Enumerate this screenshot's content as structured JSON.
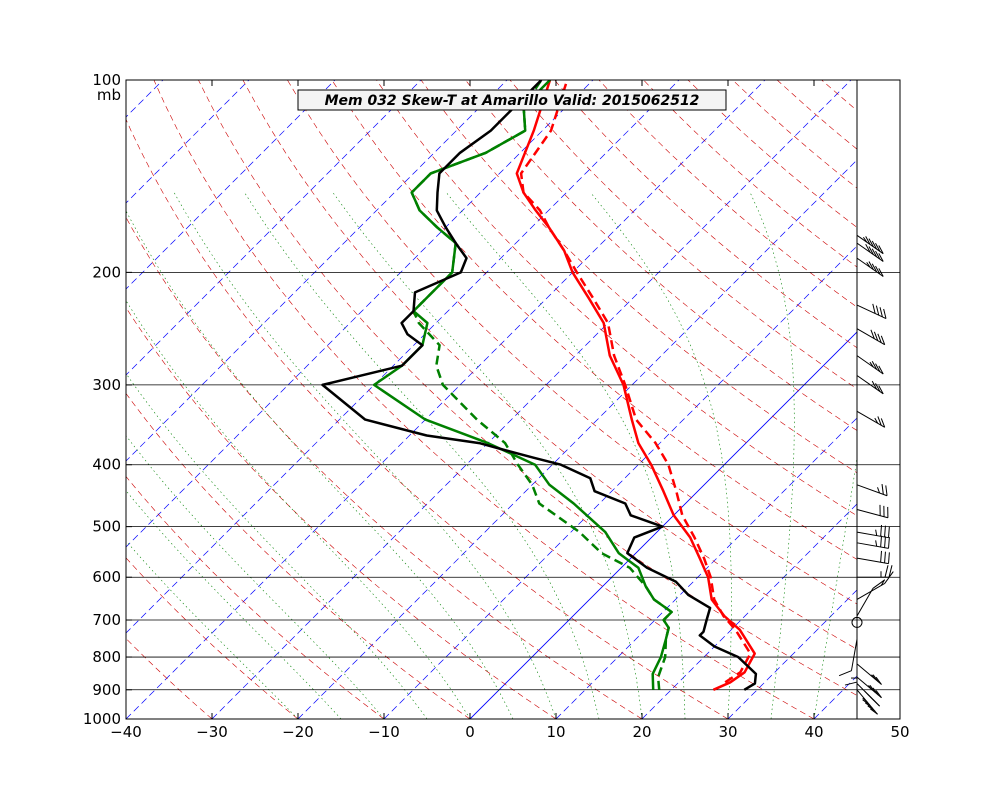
{
  "chart_data": {
    "type": "line",
    "title": "Mem 032  Skew-T at Amarillo   Valid: 2015062512",
    "xlabel": "",
    "ylabel": "",
    "y_unit_label": "mb",
    "xlim": [
      -40,
      50
    ],
    "ylim": [
      1000,
      100
    ],
    "y_scale": "log",
    "x_ticks": [
      "−40",
      "−30",
      "−20",
      "−10",
      "0",
      "10",
      "20",
      "30",
      "40",
      "50"
    ],
    "y_ticks": [
      "100",
      "200",
      "300",
      "400",
      "500",
      "600",
      "700",
      "800",
      "900",
      "1000"
    ],
    "x_tick_values": [
      -40,
      -30,
      -20,
      -10,
      0,
      10,
      20,
      30,
      40,
      50
    ],
    "y_tick_values": [
      100,
      200,
      300,
      400,
      500,
      600,
      700,
      800,
      900,
      1000
    ],
    "skew": 45,
    "isotherm_highlight": 0,
    "colors": {
      "temperature": "#ff0000",
      "dewpoint": "#008000",
      "environment": "#000000",
      "isotherm": "#0000ff",
      "dry_adiabat": "#cc0000",
      "moist_adiabat": "#008000"
    },
    "series": [
      {
        "id": "temperature-solid",
        "style": "solid",
        "color": "#ff0000",
        "pressure": [
          900,
          876,
          845,
          790,
          725,
          690,
          650,
          600,
          560,
          520,
          480,
          440,
          400,
          370,
          340,
          300,
          270,
          240,
          220,
          200,
          185,
          170,
          160,
          150,
          140,
          120,
          100
        ],
        "temperature": [
          24.9,
          26.0,
          26.5,
          25.5,
          21.0,
          17.6,
          14.2,
          11.2,
          8.0,
          4.5,
          0.0,
          -4.0,
          -8.5,
          -12.5,
          -16.0,
          -21.0,
          -26.0,
          -30.5,
          -35.0,
          -40.0,
          -43.5,
          -48.0,
          -51.5,
          -55.0,
          -58.0,
          -61.0,
          -65.0
        ]
      },
      {
        "id": "temperature-dashed",
        "style": "dashed",
        "color": "#ff0000",
        "pressure": [
          876,
          845,
          790,
          725,
          690,
          650,
          600,
          560,
          520,
          480,
          440,
          400,
          370,
          340,
          300,
          270,
          240,
          220,
          200,
          185,
          170,
          160,
          150,
          140,
          120,
          100
        ],
        "temperature": [
          25.4,
          26.0,
          25.0,
          20.5,
          17.5,
          14.5,
          11.5,
          8.5,
          5.0,
          1.0,
          -2.5,
          -6.5,
          -10.5,
          -15.5,
          -20.8,
          -25.5,
          -30.0,
          -34.5,
          -39.5,
          -43.5,
          -48.0,
          -51.0,
          -55.0,
          -57.5,
          -59.0,
          -63.0
        ]
      },
      {
        "id": "dewpoint-solid",
        "style": "solid",
        "color": "#008000",
        "pressure": [
          900,
          850,
          800,
          750,
          720,
          700,
          680,
          650,
          620,
          580,
          550,
          510,
          460,
          430,
          400,
          370,
          340,
          300,
          280,
          260,
          240,
          230,
          215,
          200,
          180,
          170,
          160,
          150,
          140,
          130,
          120,
          110,
          100
        ],
        "temperature": [
          17.9,
          16.0,
          15.0,
          13.5,
          12.5,
          11.0,
          11.0,
          7.5,
          5.0,
          2.0,
          -2.0,
          -6.0,
          -13.0,
          -18.0,
          -22.0,
          -30.0,
          -40.0,
          -50.0,
          -49.0,
          -49.0,
          -51.0,
          -54.0,
          -54.0,
          -54.0,
          -57.0,
          -61.0,
          -65.0,
          -68.0,
          -68.0,
          -64.0,
          -62.0,
          -65.0,
          -65.0
        ]
      },
      {
        "id": "dewpoint-dashed",
        "style": "dashed",
        "color": "#008000",
        "pressure": [
          900,
          860,
          800,
          750,
          720,
          700,
          680,
          650,
          620,
          580,
          550,
          510,
          460,
          430,
          400,
          370,
          340,
          300,
          280,
          260,
          240,
          230,
          215,
          200,
          180,
          170,
          160,
          150,
          140,
          130,
          120,
          110,
          100
        ],
        "temperature": [
          18.6,
          17.0,
          15.5,
          13.5,
          12.5,
          11.0,
          11.0,
          7.5,
          5.0,
          1.0,
          -4.0,
          -9.0,
          -17.0,
          -20.0,
          -24.0,
          -28.0,
          -34.0,
          -42.0,
          -45.0,
          -47.0,
          -52.0,
          -54.0,
          -54.0,
          -54.0,
          -57.0,
          -61.0,
          -65.0,
          -68.0,
          -68.0,
          -64.0,
          -62.0,
          -65.0,
          -66.0
        ]
      },
      {
        "id": "environment-profile",
        "style": "solid",
        "color": "#000000",
        "pressure": [
          900,
          880,
          850,
          800,
          770,
          740,
          730,
          700,
          670,
          640,
          610,
          580,
          550,
          520,
          500,
          480,
          460,
          440,
          420,
          400,
          390,
          380,
          370,
          360,
          340,
          300,
          280,
          260,
          250,
          240,
          230,
          215,
          200,
          190,
          180,
          170,
          160,
          150,
          140,
          130,
          120,
          110,
          100
        ],
        "temperature": [
          28.5,
          29.0,
          28.0,
          24.0,
          20.0,
          17.0,
          17.0,
          16.0,
          15.0,
          11.0,
          8.0,
          3.0,
          -1.0,
          -2.0,
          0.0,
          -5.0,
          -7.0,
          -12.0,
          -14.0,
          -19.0,
          -23.0,
          -27.0,
          -31.0,
          -38.0,
          -47.0,
          -56.0,
          -49.0,
          -49.0,
          -52.0,
          -54.0,
          -54.0,
          -56.0,
          -53.0,
          -54.0,
          -57.0,
          -60.0,
          -63.0,
          -65.0,
          -67.0,
          -67.0,
          -66.0,
          -66.0,
          -66.0
        ]
      }
    ],
    "wind_barbs": {
      "label_circle_pressure": 706,
      "barbs": [
        {
          "pressure": 900,
          "speed": 45,
          "direction": 220
        },
        {
          "pressure": 880,
          "speed": 40,
          "direction": 225
        },
        {
          "pressure": 860,
          "speed": 35,
          "direction": 230
        },
        {
          "pressure": 820,
          "speed": 25,
          "direction": 230
        },
        {
          "pressure": 780,
          "speed": 15,
          "direction": 180
        },
        {
          "pressure": 750,
          "speed": 10,
          "direction": 170
        },
        {
          "pressure": 706,
          "speed": 0,
          "direction": 0
        },
        {
          "pressure": 690,
          "speed": 10,
          "direction": 330
        },
        {
          "pressure": 650,
          "speed": 15,
          "direction": 300
        },
        {
          "pressure": 600,
          "speed": 25,
          "direction": 270
        },
        {
          "pressure": 560,
          "speed": 30,
          "direction": 260
        },
        {
          "pressure": 530,
          "speed": 35,
          "direction": 260
        },
        {
          "pressure": 510,
          "speed": 35,
          "direction": 260
        },
        {
          "pressure": 470,
          "speed": 30,
          "direction": 255
        },
        {
          "pressure": 430,
          "speed": 25,
          "direction": 250
        },
        {
          "pressure": 330,
          "speed": 25,
          "direction": 240
        },
        {
          "pressure": 290,
          "speed": 30,
          "direction": 235
        },
        {
          "pressure": 270,
          "speed": 35,
          "direction": 235
        },
        {
          "pressure": 245,
          "speed": 40,
          "direction": 240
        },
        {
          "pressure": 225,
          "speed": 40,
          "direction": 245
        },
        {
          "pressure": 190,
          "speed": 45,
          "direction": 235
        },
        {
          "pressure": 180,
          "speed": 50,
          "direction": 235
        },
        {
          "pressure": 175,
          "speed": 55,
          "direction": 235
        }
      ]
    },
    "grid": true,
    "legend": "none"
  }
}
